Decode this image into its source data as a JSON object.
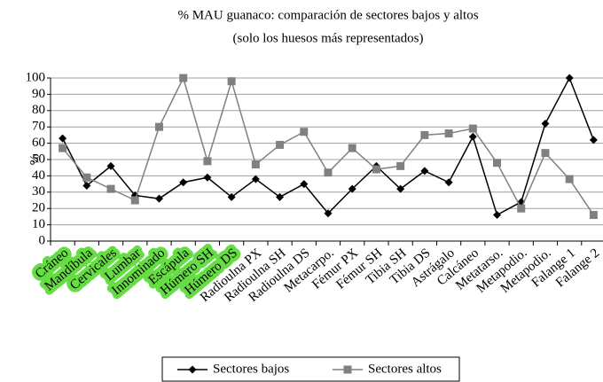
{
  "chart_data": {
    "type": "line",
    "title": "% MAU guanaco: comparación de sectores bajos y altos",
    "subtitle": "(solo los huesos más representados)",
    "y_label": "%",
    "categories": [
      "Cráneo",
      "Mandíbula",
      "Cervicales",
      "Lumbar",
      "Innominado",
      "Escápula",
      "Húmero SH",
      "Húmero DS",
      "Radioulna PX",
      "Radioulna SH",
      "Radioulna DS",
      "Metacarpo.",
      "Fémur PX",
      "Fémur SH",
      "Tibia SH",
      "Tibia DS",
      "Astrágalo",
      "Calcáneo",
      "Metatarso.",
      "Metapodio.",
      "Metapodio.",
      "Falange 1",
      "Falange 2"
    ],
    "series": [
      {
        "name": "Sectores bajos",
        "color": "#000000",
        "marker": "diamond",
        "values": [
          63,
          34,
          46,
          28,
          26,
          36,
          39,
          27,
          38,
          27,
          35,
          17,
          32,
          46,
          32,
          43,
          36,
          64,
          16,
          24,
          72,
          100,
          62
        ]
      },
      {
        "name": "Sectores altos",
        "color": "#808080",
        "marker": "square",
        "values": [
          57,
          39,
          32,
          25,
          70,
          100,
          49,
          98,
          47,
          59,
          67,
          42,
          57,
          44,
          46,
          65,
          66,
          69,
          48,
          20,
          54,
          38,
          16
        ]
      }
    ],
    "ylim": [
      0,
      100
    ],
    "yticks": [
      0,
      10,
      20,
      30,
      40,
      50,
      60,
      70,
      80,
      90,
      100
    ],
    "grid": true,
    "legend": "bottom",
    "highlight_color": "#66dd44",
    "highlighted": [
      0,
      1,
      2,
      3,
      4,
      5,
      6,
      7
    ]
  }
}
